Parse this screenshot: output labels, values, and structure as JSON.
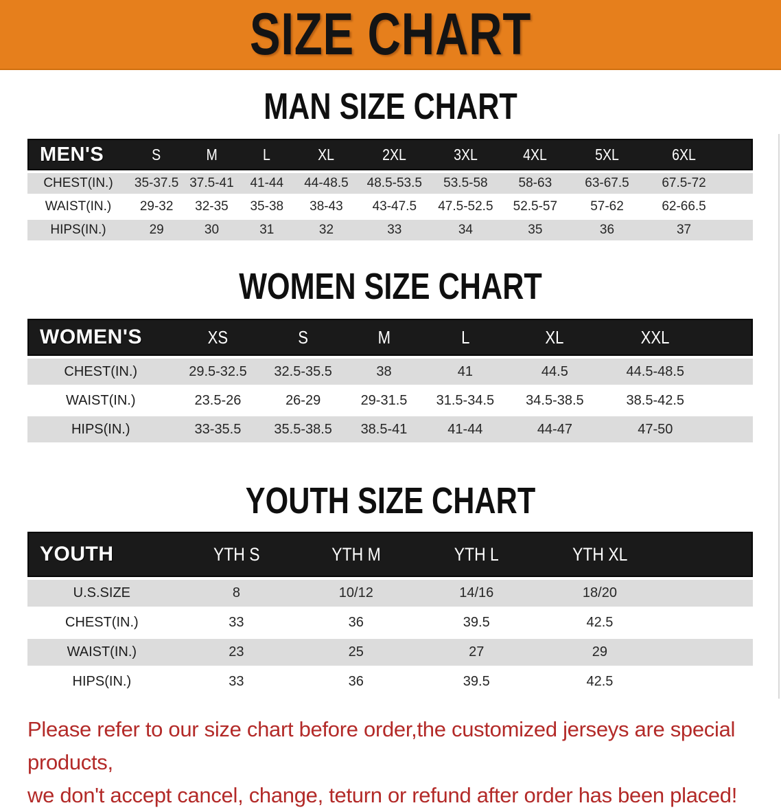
{
  "theme": {
    "banner_bg": "#E67F1C",
    "banner_text": "#141414",
    "band_bg": "#1A1A1A",
    "stripe_bg": "#DCDCDC",
    "footer_color": "#B32A28"
  },
  "banner": {
    "title": "SIZE CHART"
  },
  "sections": [
    {
      "id": "mens",
      "heading": "MAN SIZE CHART",
      "table": {
        "corner_label": "MEN'S",
        "columns": [
          "S",
          "M",
          "L",
          "XL",
          "2XL",
          "3XL",
          "4XL",
          "5XL",
          "6XL"
        ],
        "rows": [
          {
            "label": "CHEST(IN.)",
            "values": [
              "35-37.5",
              "37.5-41",
              "41-44",
              "44-48.5",
              "48.5-53.5",
              "53.5-58",
              "58-63",
              "63-67.5",
              "67.5-72"
            ]
          },
          {
            "label": "WAIST(IN.)",
            "values": [
              "29-32",
              "32-35",
              "35-38",
              "38-43",
              "43-47.5",
              "47.5-52.5",
              "52.5-57",
              "57-62",
              "62-66.5"
            ]
          },
          {
            "label": "HIPS(IN.)",
            "values": [
              "29",
              "30",
              "31",
              "32",
              "33",
              "34",
              "35",
              "36",
              "37"
            ]
          }
        ]
      }
    },
    {
      "id": "womens",
      "heading": "WOMEN SIZE CHART",
      "table": {
        "corner_label": "WOMEN'S",
        "columns": [
          "XS",
          "S",
          "M",
          "L",
          "XL",
          "XXL"
        ],
        "rows": [
          {
            "label": "CHEST(IN.)",
            "values": [
              "29.5-32.5",
              "32.5-35.5",
              "38",
              "41",
              "44.5",
              "44.5-48.5"
            ]
          },
          {
            "label": "WAIST(IN.)",
            "values": [
              "23.5-26",
              "26-29",
              "29-31.5",
              "31.5-34.5",
              "34.5-38.5",
              "38.5-42.5"
            ]
          },
          {
            "label": "HIPS(IN.)",
            "values": [
              "33-35.5",
              "35.5-38.5",
              "38.5-41",
              "41-44",
              "44-47",
              "47-50"
            ]
          }
        ]
      }
    },
    {
      "id": "youth",
      "heading": "YOUTH SIZE CHART",
      "table": {
        "corner_label": "YOUTH",
        "columns": [
          "YTH S",
          "YTH M",
          "YTH L",
          "YTH XL"
        ],
        "rows": [
          {
            "label": "U.S.SIZE",
            "values": [
              "8",
              "10/12",
              "14/16",
              "18/20"
            ]
          },
          {
            "label": "CHEST(IN.)",
            "values": [
              "33",
              "36",
              "39.5",
              "42.5"
            ]
          },
          {
            "label": "WAIST(IN.)",
            "values": [
              "23",
              "25",
              "27",
              "29"
            ]
          },
          {
            "label": "HIPS(IN.)",
            "values": [
              "33",
              "36",
              "39.5",
              "42.5"
            ]
          }
        ]
      }
    }
  ],
  "footer": {
    "line1": "Please refer to our size chart before order,the customized jerseys are special products,",
    "line2": "we don't accept cancel, change, teturn or refund after order has been placed!"
  }
}
